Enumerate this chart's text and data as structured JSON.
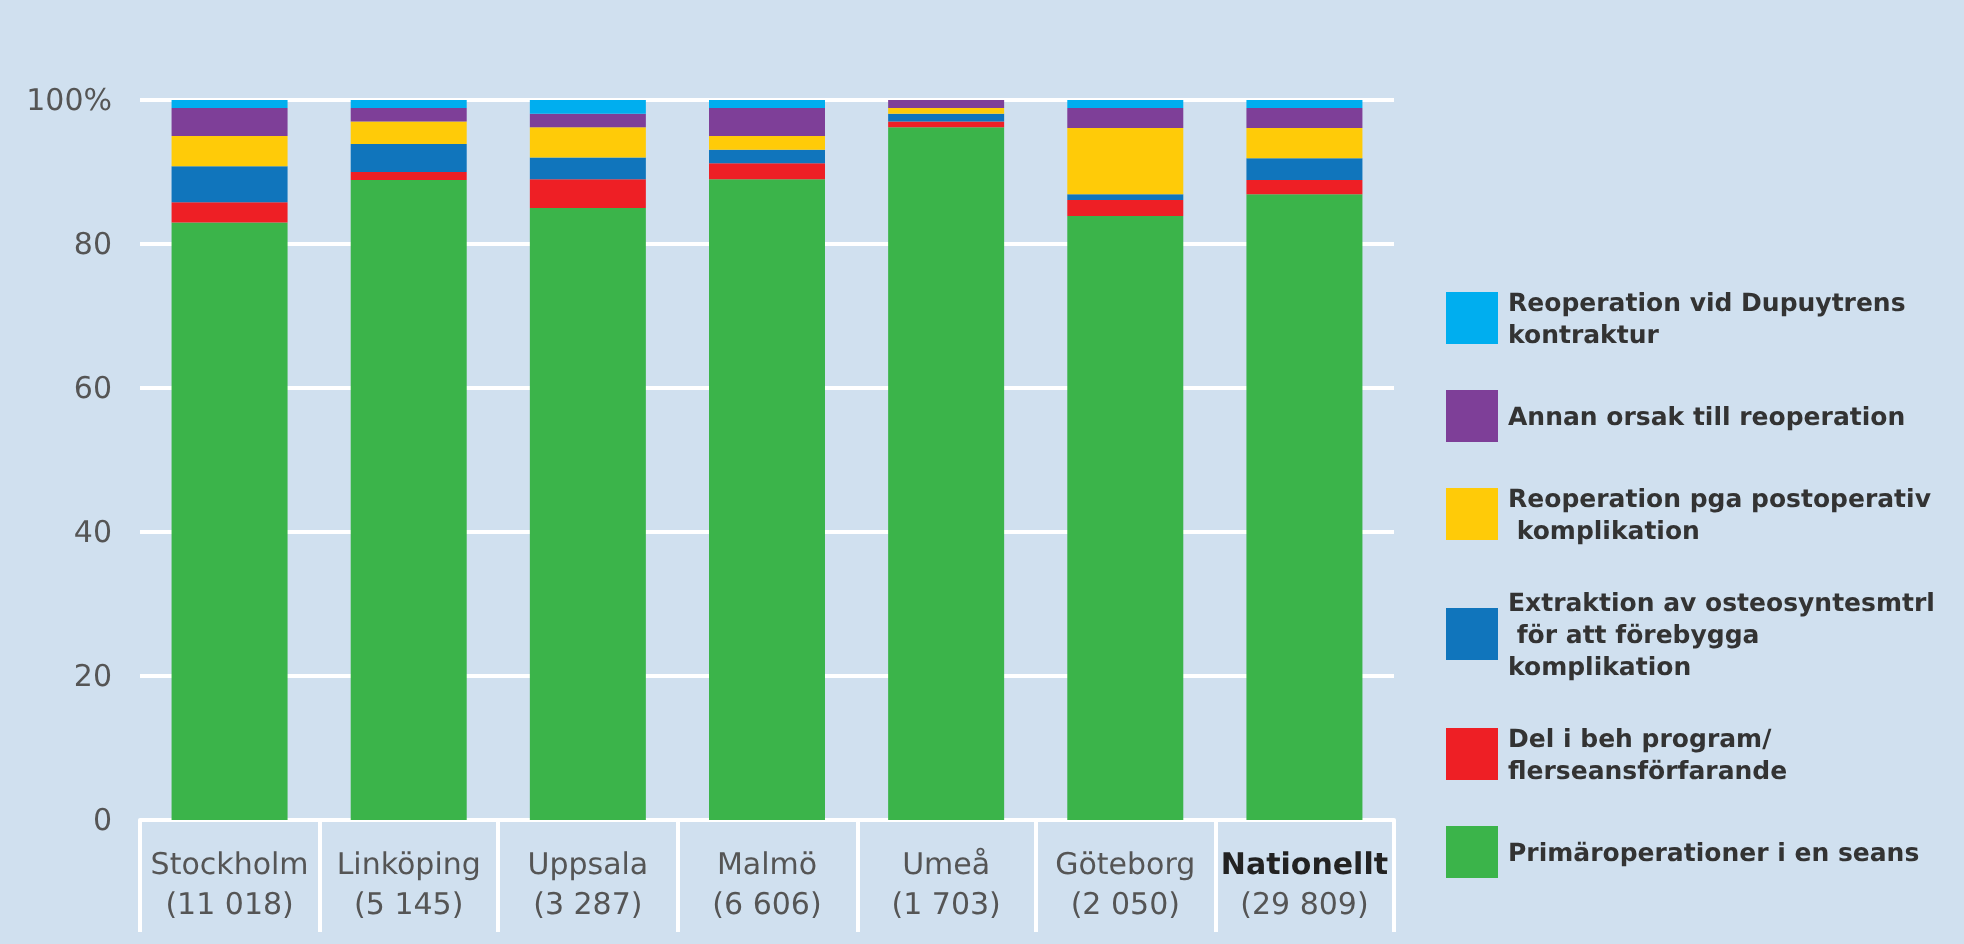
{
  "chart_data": {
    "type": "bar",
    "stacked": true,
    "categories": [
      "Stockholm\n(11 018)",
      "Linköping\n(5 145)",
      "Uppsala\n(3 287)",
      "Malmö\n(6 606)",
      "Umeå\n(1 703)",
      "Göteborg\n(2 050)",
      "Nationellt\n(29 809)"
    ],
    "series": [
      {
        "name": "Primäroperationer i en seans",
        "color": "#3bb44a",
        "values": [
          83.0,
          88.9,
          85.0,
          89.0,
          96.2,
          83.9,
          86.9
        ]
      },
      {
        "name": "Del i beh program/ flerseansförfarande",
        "color": "#ee1f25",
        "values": [
          2.8,
          1.1,
          4.0,
          2.2,
          0.8,
          2.2,
          2.0
        ]
      },
      {
        "name": "Extraktion av osteosyntesmtrl för att förebygga komplikation",
        "color": "#1075bc",
        "values": [
          5.0,
          3.9,
          3.0,
          1.9,
          1.1,
          0.8,
          3.0
        ]
      },
      {
        "name": "Reoperation pga postoperativ komplikation",
        "color": "#ffcb08",
        "values": [
          4.2,
          3.1,
          4.2,
          1.9,
          0.8,
          9.2,
          4.2
        ]
      },
      {
        "name": "Annan orsak till reoperation",
        "color": "#7e3f98",
        "values": [
          3.9,
          1.9,
          1.9,
          3.9,
          1.1,
          2.8,
          2.8
        ]
      },
      {
        "name": "Reoperation vid Dupuytrens kontraktur",
        "color": "#00aeef",
        "values": [
          1.1,
          1.1,
          1.9,
          1.1,
          0,
          1.1,
          1.1
        ]
      }
    ],
    "ylim": [
      0,
      100
    ],
    "yticks": [
      0,
      20,
      40,
      60,
      80,
      {
        "value": 100,
        "label": "100%"
      }
    ],
    "grid": "y",
    "legend": "right"
  }
}
